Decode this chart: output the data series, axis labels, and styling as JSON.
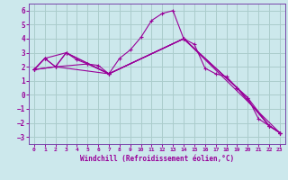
{
  "xlabel": "Windchill (Refroidissement éolien,°C)",
  "background_color": "#cce8ec",
  "grid_color": "#aacccc",
  "line_color": "#990099",
  "spine_color": "#7744aa",
  "xlim": [
    -0.5,
    23.5
  ],
  "ylim": [
    -3.5,
    6.5
  ],
  "yticks": [
    -3,
    -2,
    -1,
    0,
    1,
    2,
    3,
    4,
    5,
    6
  ],
  "xticks": [
    0,
    1,
    2,
    3,
    4,
    5,
    6,
    7,
    8,
    9,
    10,
    11,
    12,
    13,
    14,
    15,
    16,
    17,
    18,
    19,
    20,
    21,
    22,
    23
  ],
  "series": [
    {
      "x": [
        0,
        1,
        2,
        3,
        4,
        5,
        6,
        7,
        8,
        9,
        10,
        11,
        12,
        13,
        14,
        15,
        16,
        17,
        18,
        19,
        20,
        21,
        22,
        23
      ],
      "y": [
        1.8,
        2.6,
        2.0,
        3.0,
        2.5,
        2.2,
        2.1,
        1.5,
        2.6,
        3.2,
        4.1,
        5.3,
        5.8,
        6.0,
        4.0,
        3.6,
        1.9,
        1.5,
        1.3,
        0.5,
        -0.2,
        -1.7,
        -2.2,
        -2.7
      ]
    },
    {
      "x": [
        0,
        1,
        2,
        3,
        7,
        14,
        19,
        22,
        23
      ],
      "y": [
        1.8,
        2.6,
        2.0,
        3.0,
        1.5,
        4.0,
        0.5,
        -2.2,
        -2.7
      ]
    },
    {
      "x": [
        0,
        2,
        7,
        14,
        19,
        22,
        23
      ],
      "y": [
        1.8,
        2.0,
        1.5,
        4.0,
        0.5,
        -2.2,
        -2.7
      ]
    },
    {
      "x": [
        0,
        1,
        3,
        7,
        14,
        20,
        22,
        23
      ],
      "y": [
        1.8,
        2.6,
        3.0,
        1.5,
        4.0,
        -0.2,
        -2.2,
        -2.7
      ]
    },
    {
      "x": [
        0,
        2,
        5,
        7,
        14,
        23
      ],
      "y": [
        1.8,
        2.0,
        2.2,
        1.5,
        4.0,
        -2.7
      ]
    }
  ]
}
